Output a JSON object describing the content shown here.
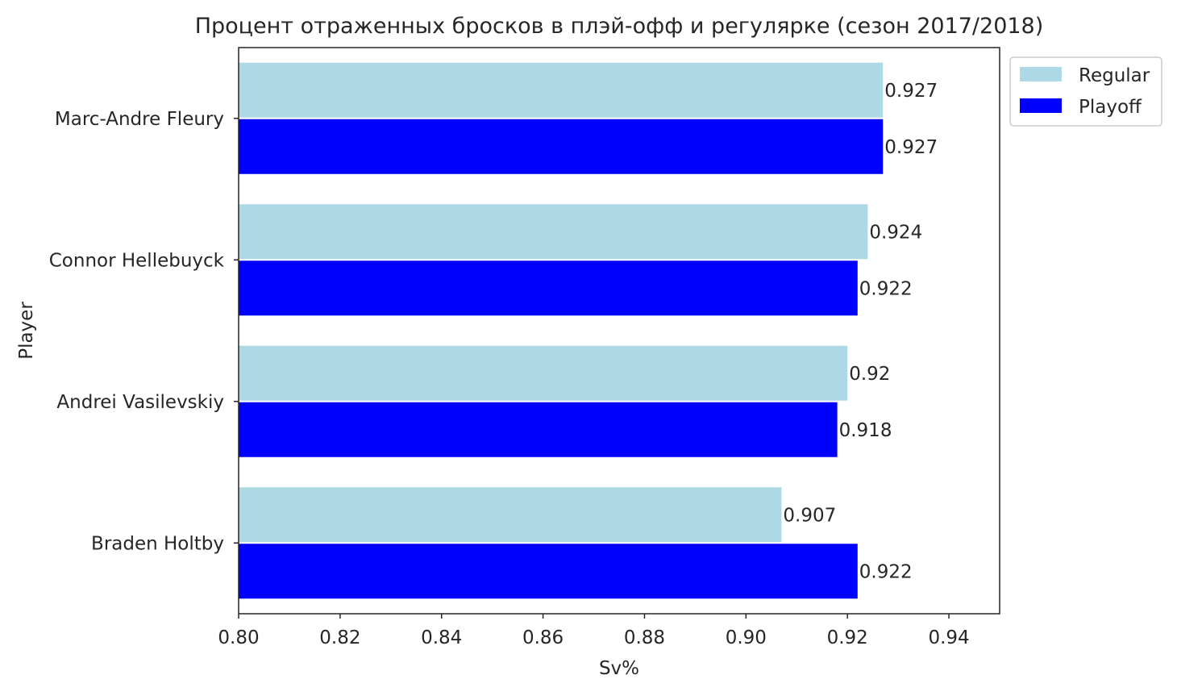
{
  "chart_data": {
    "type": "bar",
    "orientation": "horizontal",
    "title": "Процент отраженных бросков в плэй-офф и регулярке (сезон 2017/2018)",
    "xlabel": "Sv%",
    "ylabel": "Player",
    "categories": [
      "Marc-Andre Fleury",
      "Connor Hellebuyck",
      "Andrei Vasilevskiy",
      "Braden Holtby"
    ],
    "series": [
      {
        "name": "Regular",
        "color": "#add8e6",
        "values": [
          0.927,
          0.924,
          0.92,
          0.907
        ],
        "labels": [
          "0.927",
          "0.924",
          "0.92",
          "0.907"
        ]
      },
      {
        "name": "Playoff",
        "color": "#0000ff",
        "values": [
          0.927,
          0.922,
          0.918,
          0.922
        ],
        "labels": [
          "0.927",
          "0.922",
          "0.918",
          "0.922"
        ]
      }
    ],
    "xlim": [
      0.8,
      0.95
    ],
    "xticks": [
      0.8,
      0.82,
      0.84,
      0.86,
      0.88,
      0.9,
      0.92,
      0.94
    ],
    "xtick_labels": [
      "0.80",
      "0.82",
      "0.84",
      "0.86",
      "0.88",
      "0.90",
      "0.92",
      "0.94"
    ],
    "grid": false,
    "legend_position": "outside-top-right"
  }
}
